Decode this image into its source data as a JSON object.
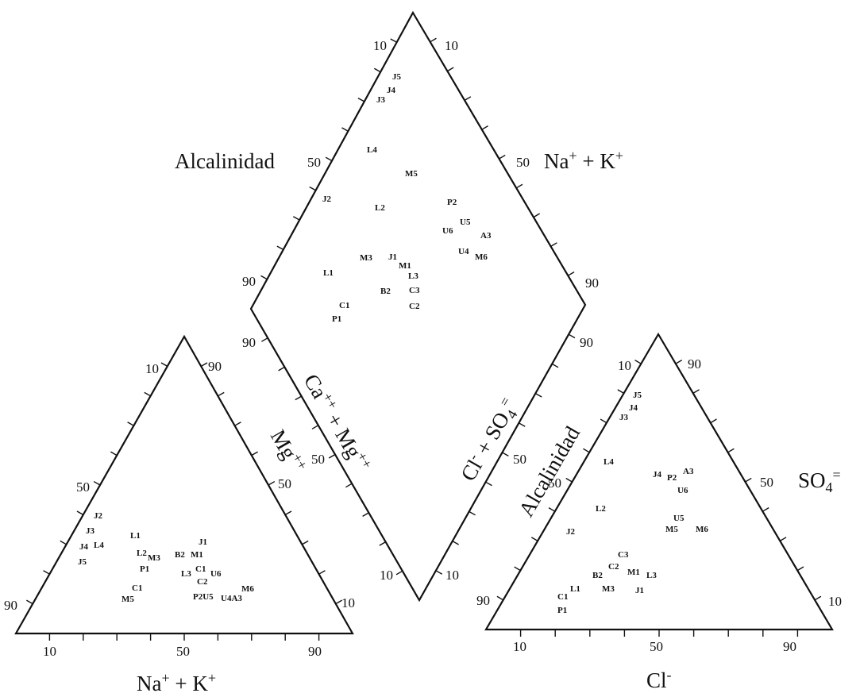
{
  "diagram": {
    "labels": {
      "diamond_alkalinity": "Alcalinidad",
      "diamond_nak": "Na+ + K+",
      "diamond_camg": "Ca++ + Mg++",
      "diamond_clso4": "Cl- + SO4=",
      "cation_mg": "Mg++",
      "cation_nak": "Na+ + K+",
      "anion_alkalinity": "Alcalinidad",
      "anion_so4": "SO4=",
      "anion_cl": "Cl-"
    },
    "ticks": [
      "10",
      "50",
      "90"
    ],
    "diamond_points": [
      "J5",
      "J4",
      "J3",
      "L4",
      "M5",
      "J2",
      "L2",
      "P2",
      "U5",
      "U6",
      "A3",
      "U4",
      "M6",
      "M3",
      "J1",
      "M1",
      "L1",
      "L3",
      "C3",
      "B2",
      "C1",
      "C2",
      "P1"
    ],
    "cation_points": [
      "J2",
      "J3",
      "J4",
      "L4",
      "J5",
      "L1",
      "L2",
      "M3",
      "P1",
      "B2",
      "M1",
      "J1",
      "L3",
      "C1",
      "U6",
      "C2",
      "C1",
      "M5",
      "P2U5",
      "U4A3",
      "M6"
    ],
    "anion_points": [
      "J5",
      "J4",
      "J3",
      "L4",
      "J4",
      "P2",
      "A3",
      "U6",
      "L2",
      "J2",
      "U5",
      "M5",
      "M6",
      "C3",
      "C2",
      "M1",
      "L3",
      "B2",
      "C1",
      "L1",
      "M3",
      "J1",
      "P1"
    ]
  }
}
